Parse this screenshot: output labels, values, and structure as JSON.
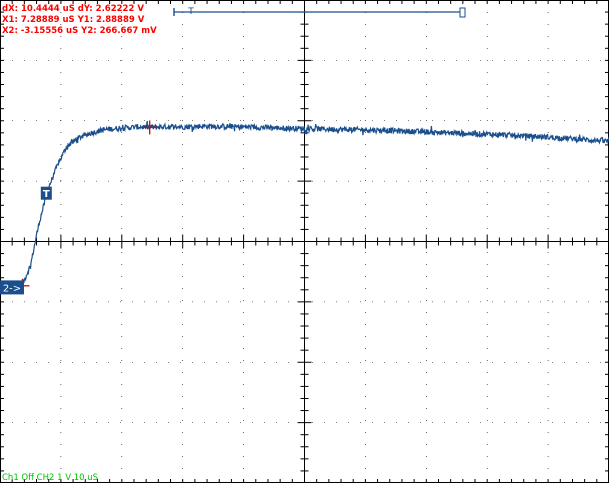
{
  "colors": {
    "background": "#ffffff",
    "grid": "#000000",
    "trace": "#1a4e8c",
    "cursor": "#e00000",
    "readout": "#ff0000",
    "status": "#00c000",
    "channel_marker": "#1a4e8c",
    "trigger_marker": "#1a4e8c"
  },
  "trigger_marker": {
    "label": "T"
  },
  "channel_marker": {
    "label": "2->"
  },
  "timeline": {
    "label": "T"
  },
  "cursor_readout": {
    "line1": "dX: 10.4444 uS   dY: 2.62222  V",
    "line2": "X1: 7.28889 uS   Y1: 2.88889  V",
    "line3": "X2: -3.15556 uS   Y2: 266.667 mV"
  },
  "status_bar": {
    "text": "Ch1 Off  CH2  1 V   10 uS"
  },
  "chart_data": {
    "type": "line",
    "title": "",
    "xlabel": "",
    "ylabel": "",
    "xlim": [
      -5,
      45
    ],
    "ylim": [
      -3,
      5
    ],
    "grid": true,
    "series": [
      {
        "x": [
          -5,
          -4,
          -3.2,
          -2.5,
          -1.8,
          -1,
          -0.2,
          0.5,
          1.5,
          2.5,
          3.5,
          5,
          6.5,
          7.3,
          8.5,
          10,
          12,
          15,
          18,
          22,
          25,
          28,
          32,
          36,
          40,
          45
        ],
        "y": [
          0.24,
          0.24,
          0.27,
          0.6,
          1.3,
          1.9,
          2.3,
          2.58,
          2.72,
          2.8,
          2.85,
          2.88,
          2.9,
          2.89,
          2.9,
          2.9,
          2.91,
          2.9,
          2.88,
          2.86,
          2.85,
          2.83,
          2.8,
          2.77,
          2.73,
          2.66
        ]
      }
    ],
    "cursors": [
      {
        "name": "X1",
        "x": 7.28889,
        "y": 2.88889
      },
      {
        "name": "X2",
        "x": -3.15556,
        "y": 0.266667
      }
    ],
    "trigger": {
      "x": -1.2,
      "y": 1.8
    }
  }
}
